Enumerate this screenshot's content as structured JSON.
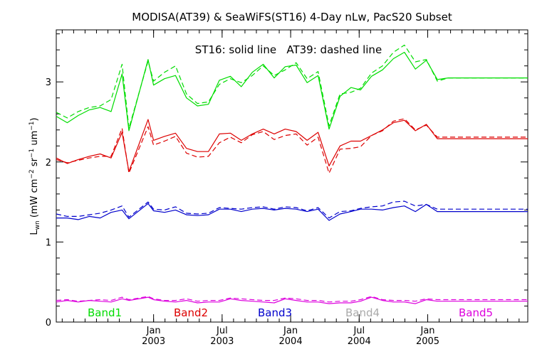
{
  "chart_data": {
    "type": "line",
    "title": "MODISA(AT39) & SeaWiFS(ST16) 4-Day nLw, PacS20 Subset",
    "annotation": "ST16: solid line   AT39: dashed line",
    "ylabel": "L_wn (mW cm^-2 sr^-1 um^-1)",
    "ylabel_parts": {
      "L": "L",
      "sub": "wn",
      "open": "(mW cm",
      "sup1": "−2",
      "sr": " sr",
      "sup2": "−1",
      "um": " um",
      "sup3": "−1",
      "close": ")"
    },
    "ylim": [
      0,
      3.65
    ],
    "xlim": [
      2002.29,
      2005.73
    ],
    "y_ticks": [
      0,
      1,
      2,
      3
    ],
    "x_ticks": [
      {
        "x": 2003.0,
        "label1": "Jan",
        "label2": "2003"
      },
      {
        "x": 2003.5,
        "label1": "Jul",
        "label2": "2003"
      },
      {
        "x": 2004.0,
        "label1": "Jan",
        "label2": "2004"
      },
      {
        "x": 2004.5,
        "label1": "Jul",
        "label2": "2004"
      },
      {
        "x": 2005.0,
        "label1": "Jan",
        "label2": "2005"
      }
    ],
    "x": [
      2002.29,
      2002.37,
      2002.45,
      2002.53,
      2002.61,
      2002.69,
      2002.77,
      2002.82,
      2002.96,
      2003.0,
      2003.08,
      2003.16,
      2003.24,
      2003.32,
      2003.4,
      2003.48,
      2003.56,
      2003.64,
      2003.72,
      2003.8,
      2003.88,
      2003.96,
      2004.04,
      2004.12,
      2004.2,
      2004.28,
      2004.36,
      2004.44,
      2004.51,
      2004.59,
      2004.67,
      2004.75,
      2004.83,
      2004.91,
      2004.99,
      2005.07,
      2005.15,
      2005.23,
      2005.31,
      2005.39,
      2005.47,
      2005.55,
      2005.63,
      2005.73
    ],
    "series": [
      {
        "name": "Band1",
        "color": "#00dd00",
        "solid": [
          2.57,
          2.49,
          2.58,
          2.65,
          2.68,
          2.63,
          3.1,
          2.39,
          3.28,
          2.96,
          3.04,
          3.08,
          2.8,
          2.7,
          2.72,
          3.02,
          3.07,
          2.94,
          3.12,
          3.22,
          3.05,
          3.19,
          3.21,
          2.99,
          3.08,
          2.41,
          2.82,
          2.93,
          2.9,
          3.07,
          3.15,
          3.29,
          3.37,
          3.16,
          3.27,
          3.03,
          3.05,
          3.05,
          3.05,
          3.05,
          3.05,
          3.05,
          3.05,
          3.05
        ],
        "dashed": [
          2.62,
          2.55,
          2.63,
          2.68,
          2.7,
          2.78,
          3.22,
          2.42,
          3.26,
          3.01,
          3.12,
          3.2,
          2.85,
          2.73,
          2.75,
          2.97,
          3.04,
          2.99,
          3.08,
          3.2,
          3.08,
          3.15,
          3.24,
          3.04,
          3.13,
          2.45,
          2.85,
          2.87,
          2.92,
          3.11,
          3.2,
          3.37,
          3.46,
          3.25,
          3.28,
          3.01,
          3.05,
          3.05,
          3.05,
          3.05,
          3.05,
          3.05,
          3.05,
          3.05
        ]
      },
      {
        "name": "Band2",
        "color": "#dd0000",
        "solid": [
          2.05,
          1.98,
          2.03,
          2.07,
          2.1,
          2.05,
          2.37,
          1.88,
          2.53,
          2.27,
          2.32,
          2.36,
          2.17,
          2.13,
          2.13,
          2.35,
          2.36,
          2.27,
          2.35,
          2.41,
          2.35,
          2.41,
          2.38,
          2.27,
          2.37,
          1.95,
          2.2,
          2.26,
          2.26,
          2.33,
          2.4,
          2.49,
          2.52,
          2.39,
          2.47,
          2.29,
          2.29,
          2.29,
          2.29,
          2.29,
          2.29,
          2.29,
          2.29,
          2.29
        ],
        "dashed": [
          2.03,
          1.99,
          2.02,
          2.05,
          2.07,
          2.07,
          2.42,
          1.86,
          2.44,
          2.21,
          2.26,
          2.32,
          2.11,
          2.06,
          2.07,
          2.24,
          2.31,
          2.24,
          2.34,
          2.38,
          2.28,
          2.33,
          2.35,
          2.21,
          2.31,
          1.86,
          2.16,
          2.17,
          2.19,
          2.33,
          2.39,
          2.51,
          2.54,
          2.4,
          2.46,
          2.31,
          2.31,
          2.31,
          2.31,
          2.31,
          2.31,
          2.31,
          2.31,
          2.31
        ]
      },
      {
        "name": "Band3",
        "color": "#0000cc",
        "solid": [
          1.3,
          1.3,
          1.28,
          1.32,
          1.3,
          1.37,
          1.4,
          1.29,
          1.48,
          1.39,
          1.37,
          1.4,
          1.34,
          1.33,
          1.34,
          1.41,
          1.41,
          1.38,
          1.41,
          1.42,
          1.4,
          1.42,
          1.41,
          1.38,
          1.41,
          1.27,
          1.35,
          1.38,
          1.41,
          1.41,
          1.4,
          1.43,
          1.45,
          1.38,
          1.47,
          1.38,
          1.38,
          1.38,
          1.38,
          1.38,
          1.38,
          1.38,
          1.38,
          1.38
        ],
        "dashed": [
          1.35,
          1.32,
          1.32,
          1.34,
          1.36,
          1.4,
          1.45,
          1.31,
          1.5,
          1.41,
          1.4,
          1.44,
          1.36,
          1.35,
          1.36,
          1.43,
          1.42,
          1.41,
          1.43,
          1.44,
          1.41,
          1.44,
          1.43,
          1.39,
          1.43,
          1.3,
          1.38,
          1.39,
          1.42,
          1.44,
          1.45,
          1.5,
          1.51,
          1.45,
          1.47,
          1.41,
          1.41,
          1.41,
          1.41,
          1.41,
          1.41,
          1.41,
          1.41,
          1.41
        ]
      },
      {
        "name": "Band4",
        "color": "#aaaaaa",
        "solid": [],
        "dashed": []
      },
      {
        "name": "Band5",
        "color": "#dd00dd",
        "solid": [
          0.25,
          0.27,
          0.25,
          0.27,
          0.26,
          0.25,
          0.29,
          0.27,
          0.31,
          0.28,
          0.26,
          0.25,
          0.27,
          0.24,
          0.25,
          0.25,
          0.29,
          0.27,
          0.26,
          0.25,
          0.24,
          0.29,
          0.27,
          0.25,
          0.25,
          0.23,
          0.24,
          0.24,
          0.26,
          0.31,
          0.27,
          0.25,
          0.25,
          0.23,
          0.28,
          0.26,
          0.26,
          0.26,
          0.26,
          0.26,
          0.26,
          0.26,
          0.26,
          0.26
        ],
        "dashed": [
          0.27,
          0.28,
          0.26,
          0.27,
          0.28,
          0.27,
          0.31,
          0.28,
          0.32,
          0.29,
          0.27,
          0.27,
          0.29,
          0.26,
          0.27,
          0.27,
          0.3,
          0.29,
          0.28,
          0.27,
          0.27,
          0.3,
          0.29,
          0.27,
          0.27,
          0.25,
          0.26,
          0.26,
          0.28,
          0.32,
          0.28,
          0.27,
          0.27,
          0.26,
          0.29,
          0.28,
          0.28,
          0.28,
          0.28,
          0.28,
          0.28,
          0.28,
          0.28,
          0.28
        ]
      }
    ]
  }
}
